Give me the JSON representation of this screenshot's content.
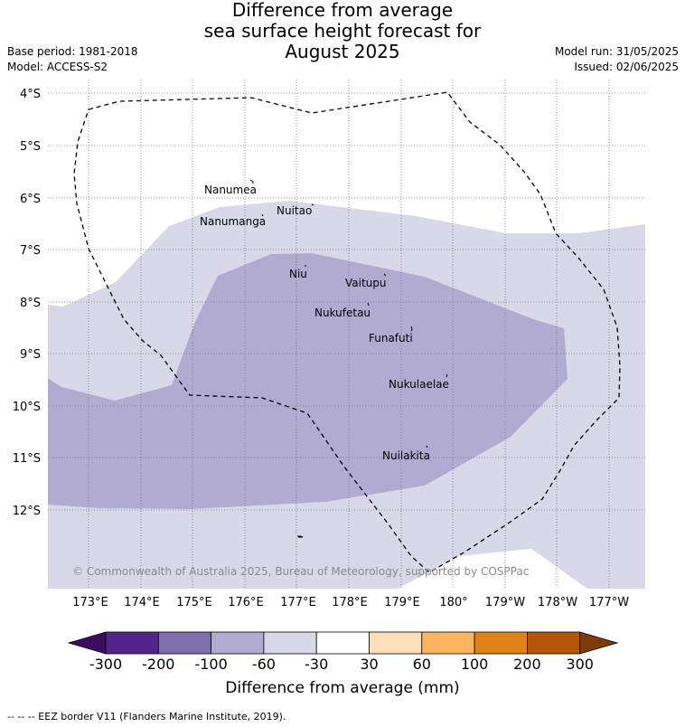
{
  "title": {
    "line1": "Difference from average",
    "line2": "sea surface height forecast for",
    "line3": "August 2025"
  },
  "meta": {
    "base_period": "Base period: 1981-2018",
    "model": "Model: ACCESS-S2",
    "model_run": "Model run: 31/05/2025",
    "issued": "Issued: 02/06/2025"
  },
  "map": {
    "lat_labels": [
      "4°S",
      "5°S",
      "6°S",
      "7°S",
      "8°S",
      "9°S",
      "10°S",
      "11°S",
      "12°S"
    ],
    "lon_labels": [
      "173°E",
      "174°E",
      "175°E",
      "176°E",
      "177°E",
      "178°E",
      "179°E",
      "180°",
      "179°W",
      "178°W",
      "177°W"
    ],
    "places": [
      "Nanumea",
      "Nuitao",
      "Nanumanga",
      "Niu",
      "Vaitupu",
      "Nukufetau",
      "Funafuti",
      "Nukulaelae",
      "Nuilakita"
    ],
    "copyright": "© Commonwealth of Australia 2025, Bureau of Meteorology, supported by COSPPac",
    "colors": {
      "class_-60_-30": "#d8d8e9",
      "class_-100_-60": "#b1abd2",
      "eez_border": "#000000"
    }
  },
  "colorbar": {
    "ticks": [
      "-300",
      "-200",
      "-100",
      "-60",
      "-30",
      "30",
      "60",
      "100",
      "200",
      "300"
    ],
    "colors": [
      "#3d0b60",
      "#532589",
      "#7f6ea9",
      "#b1abd2",
      "#d8d8e9",
      "#ffffff",
      "#fde0b7",
      "#fdb460",
      "#e18219",
      "#b35808",
      "#7f3b08"
    ],
    "label": "Difference from average (mm)"
  },
  "footnote": "--  --  -- EEZ border V11 (Flanders Marine Institute, 2019)."
}
